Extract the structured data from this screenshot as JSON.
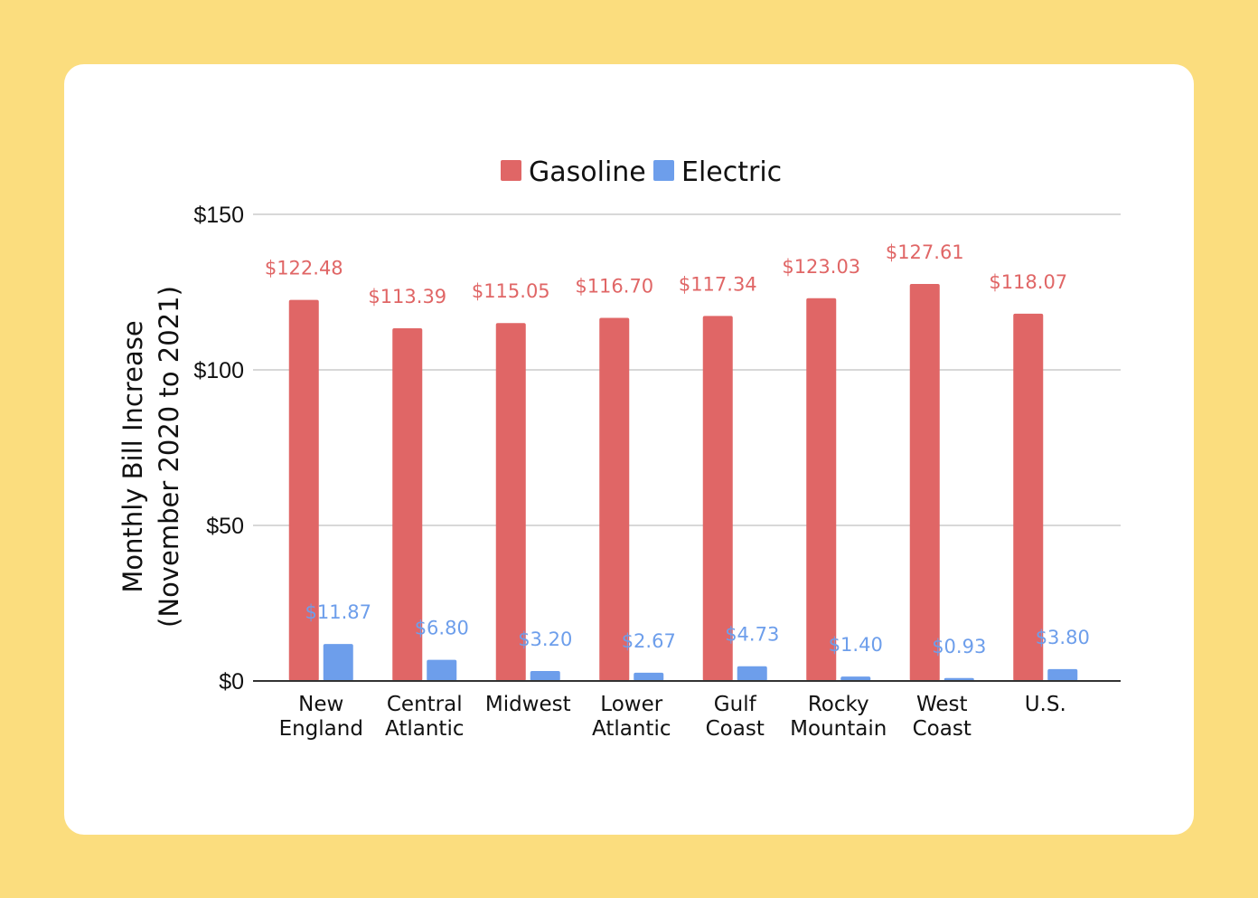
{
  "chart_data": {
    "type": "bar",
    "categories": [
      [
        "New",
        "England"
      ],
      [
        "Central",
        "Atlantic"
      ],
      [
        "Midwest"
      ],
      [
        "Lower",
        "Atlantic"
      ],
      [
        "Gulf",
        "Coast"
      ],
      [
        "Rocky",
        "Mountain"
      ],
      [
        "West",
        "Coast"
      ],
      [
        "U.S."
      ]
    ],
    "series": [
      {
        "name": "Gasoline",
        "color": "#e06666",
        "values": [
          122.48,
          113.39,
          115.05,
          116.7,
          117.34,
          123.03,
          127.61,
          118.07
        ],
        "labels": [
          "$122.48",
          "$113.39",
          "$115.05",
          "$116.70",
          "$117.34",
          "$123.03",
          "$127.61",
          "$118.07"
        ]
      },
      {
        "name": "Electric",
        "color": "#6d9eeb",
        "values": [
          11.87,
          6.8,
          3.2,
          2.67,
          4.73,
          1.4,
          0.93,
          3.8
        ],
        "labels": [
          "$11.87",
          "$6.80",
          "$3.20",
          "$2.67",
          "$4.73",
          "$1.40",
          "$0.93",
          "$3.80"
        ]
      }
    ],
    "title": "",
    "xlabel": "",
    "ylabel": [
      "Monthly Bill Increase",
      "(November 2020 to 2021)"
    ],
    "ylim": [
      0,
      150
    ],
    "yticks": [
      0,
      50,
      100,
      150
    ],
    "ytick_labels": [
      "$0",
      "$50",
      "$100",
      "$150"
    ],
    "grid": true,
    "legend_position": "top-center"
  },
  "colors": {
    "page_background": "#fbdd7e",
    "card_background": "#ffffff",
    "gridline": "#cccccc",
    "axis": "#333333"
  }
}
